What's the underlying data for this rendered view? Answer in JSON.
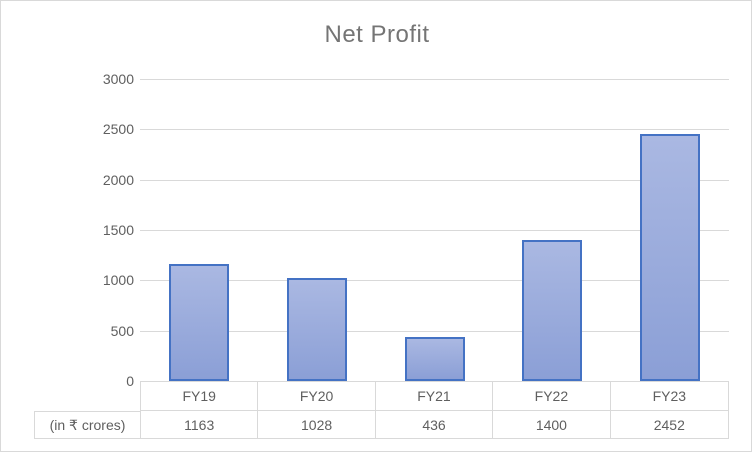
{
  "chart_data": {
    "type": "bar",
    "title": "Net Profit",
    "categories": [
      "FY19",
      "FY20",
      "FY21",
      "FY22",
      "FY23"
    ],
    "series": [
      {
        "name": "(in ₹ crores)",
        "values": [
          1163,
          1028,
          436,
          1400,
          2452
        ]
      }
    ],
    "xlabel": "",
    "ylabel": "",
    "ylim": [
      0,
      3000
    ],
    "ytick_step": 500,
    "yticks": [
      0,
      500,
      1000,
      1500,
      2000,
      2500,
      3000
    ],
    "grid": true,
    "legend": "none",
    "data_table_shown": true
  },
  "colors": {
    "bar_fill_top": "#aab8e2",
    "bar_fill_bottom": "#8b9fd6",
    "bar_border": "#4472c4",
    "gridline": "#d9d9d9",
    "table_border": "#d9d9d9",
    "axis_text": "#5f5f5f",
    "title_text": "#757575",
    "chart_border": "#d9d9d9",
    "background": "#ffffff"
  }
}
